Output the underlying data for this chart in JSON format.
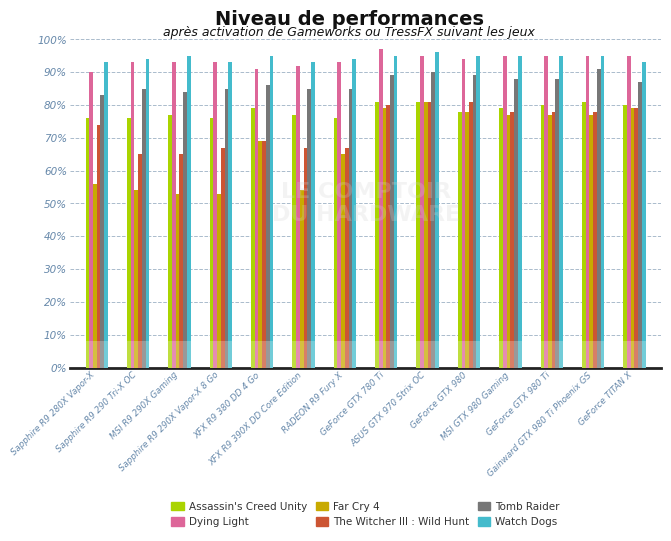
{
  "title": "Niveau de performances",
  "subtitle": "après activation de Gameworks ou TressFX suivant les jeux",
  "categories": [
    "Sapphire R9 280X Vapor-X",
    "Sapphire R9 290 Tri-X OC",
    "MSI R9 290X Gaming",
    "Sapphire R9 290X Vapor-X 8 Go",
    "XFX R9 380 DD 4 Go",
    "XFX R9 390X DD Core Edition",
    "RADEON R9 Fury X",
    "GeForce GTX 780 Ti",
    "ASUS GTX 970 Strix OC",
    "GeForce GTX 980",
    "MSI GTX 980 Gaming",
    "GeForce GTX 980 Ti",
    "Gainward GTX 980 Ti Phoenix GS",
    "GeForce TITAN X"
  ],
  "series_order": [
    "Assassin's Creed Unity",
    "Dying Light",
    "Far Cry 4",
    "The Witcher III : Wild Hunt",
    "Tomb Raider",
    "Watch Dogs"
  ],
  "series": {
    "Assassin's Creed Unity": {
      "color": "#aad400",
      "values": [
        76,
        76,
        77,
        76,
        79,
        77,
        76,
        81,
        81,
        78,
        79,
        80,
        81,
        80
      ]
    },
    "Dying Light": {
      "color": "#dd6699",
      "values": [
        90,
        93,
        93,
        93,
        91,
        92,
        93,
        97,
        95,
        94,
        95,
        95,
        95,
        95
      ]
    },
    "Far Cry 4": {
      "color": "#c8aa00",
      "values": [
        56,
        54,
        53,
        53,
        69,
        54,
        65,
        79,
        81,
        78,
        77,
        77,
        77,
        79
      ]
    },
    "The Witcher III : Wild Hunt": {
      "color": "#cc5533",
      "values": [
        74,
        65,
        65,
        67,
        69,
        67,
        67,
        80,
        81,
        81,
        78,
        78,
        78,
        79
      ]
    },
    "Tomb Raider": {
      "color": "#777777",
      "values": [
        83,
        85,
        84,
        85,
        86,
        85,
        85,
        89,
        90,
        89,
        88,
        88,
        91,
        87
      ]
    },
    "Watch Dogs": {
      "color": "#44bbcc",
      "values": [
        93,
        94,
        95,
        93,
        95,
        93,
        94,
        95,
        96,
        95,
        95,
        95,
        95,
        93
      ]
    }
  },
  "ylim": [
    0,
    100
  ],
  "yticks": [
    0,
    10,
    20,
    30,
    40,
    50,
    60,
    70,
    80,
    90,
    100
  ],
  "ytick_labels": [
    "0%",
    "10%",
    "20%",
    "30%",
    "40%",
    "50%",
    "60%",
    "70%",
    "80%",
    "90%",
    "100%"
  ],
  "background_color": "#ffffff",
  "plot_bg_color": "#ffffff",
  "grid_color": "#aabbcc",
  "bar_width": 0.09,
  "title_fontsize": 14,
  "subtitle_fontsize": 9,
  "axis_label_color": "#6688aa",
  "title_color": "#111111",
  "subtitle_color": "#111111"
}
